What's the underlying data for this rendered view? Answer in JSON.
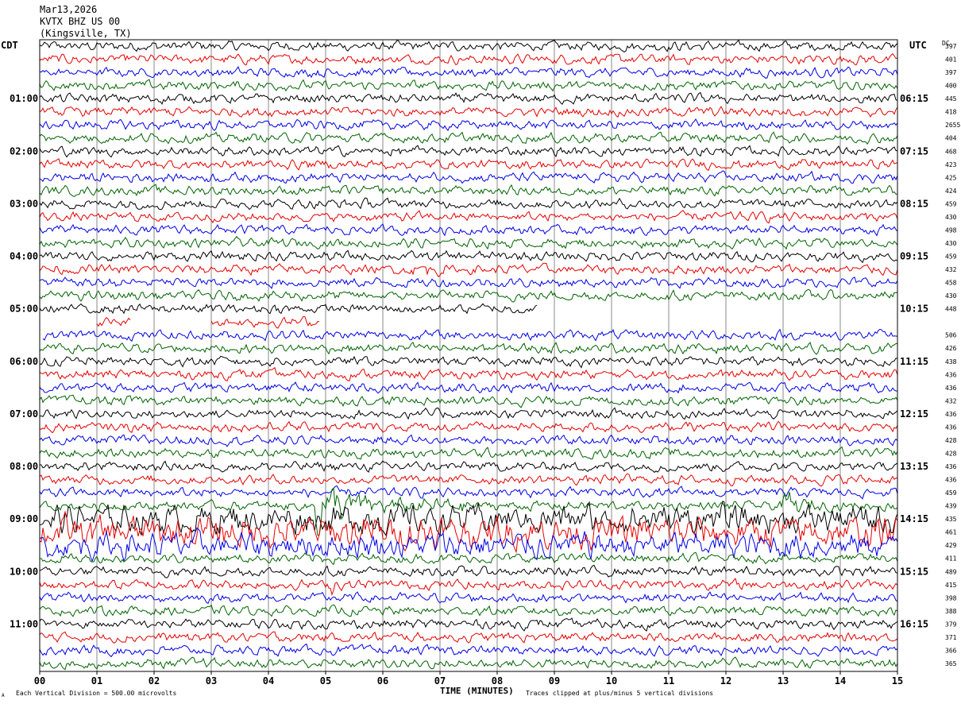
{
  "header": {
    "date": "Mar13,2026",
    "station": "KVTX BHZ US 00",
    "location": "(Kingsville, TX)"
  },
  "left_timezone": "CDT",
  "right_timezone": "UTC",
  "dc_label": "DC",
  "xlabel": "TIME (MINUTES)",
  "footer": {
    "scale_note": "Each Vertical Division =  500.00 microvolts",
    "clip_note": "Traces clipped at plus/minus 5 vertical divisions",
    "corner_mark": "A"
  },
  "colors": {
    "series": [
      "#000000",
      "#e60000",
      "#0000e6",
      "#006400"
    ],
    "grid": "#8a8a8a",
    "frame": "#000000"
  },
  "chart_data": {
    "type": "line",
    "description_units": "helicorder rows of 15 minutes each; x axis in minutes",
    "x_ticks": [
      "00",
      "01",
      "02",
      "03",
      "04",
      "05",
      "06",
      "07",
      "08",
      "09",
      "10",
      "11",
      "12",
      "13",
      "14",
      "15"
    ],
    "xlim": [
      0,
      15
    ],
    "row_count": 48,
    "row_minutes": 15,
    "left_hour_labels": [
      "01:00",
      "02:00",
      "03:00",
      "04:00",
      "05:00",
      "06:00",
      "07:00",
      "08:00",
      "09:00",
      "10:00",
      "11:00"
    ],
    "right_hour_labels": [
      "06:15",
      "07:15",
      "08:15",
      "09:15",
      "10:15",
      "11:15",
      "12:15",
      "13:15",
      "14:15",
      "15:15",
      "16:15"
    ],
    "dc_offsets": [
      "397",
      "401",
      "397",
      "400",
      "445",
      "418",
      "2655",
      "404",
      "468",
      "423",
      "425",
      "424",
      "459",
      "430",
      "498",
      "430",
      "459",
      "432",
      "458",
      "430",
      "448",
      "",
      "506",
      "426",
      "438",
      "436",
      "436",
      "432",
      "436",
      "436",
      "428",
      "428",
      "436",
      "436",
      "459",
      "439",
      "435",
      "461",
      "429",
      "411",
      "489",
      "415",
      "398",
      "388",
      "379",
      "371",
      "366",
      "365"
    ],
    "gaps": [
      {
        "row": 20,
        "start_min": 8.7,
        "end_min": 15
      },
      {
        "row": 21,
        "start_min": 0,
        "end_min": 1.0
      },
      {
        "row": 21,
        "start_min": 1.6,
        "end_min": 3.0
      },
      {
        "row": 21,
        "start_min": 4.9,
        "end_min": 15
      },
      {
        "row": 22,
        "start_min": 0,
        "end_min": 0.05
      }
    ],
    "events": [
      {
        "row": 35,
        "start_min": 4.8,
        "end_min": 7.5,
        "peak_amplitude_div": 3.0
      },
      {
        "row": 35,
        "start_min": 13.0,
        "end_min": 14.8,
        "peak_amplitude_div": 1.6
      },
      {
        "row": 36,
        "start_min": 0,
        "end_min": 15,
        "peak_amplitude_div": 1.4
      },
      {
        "row": 37,
        "start_min": 0,
        "end_min": 15,
        "peak_amplitude_div": 1.5
      },
      {
        "row": 38,
        "start_min": 0,
        "end_min": 15,
        "peak_amplitude_div": 1.2
      },
      {
        "row": 40,
        "start_min": 11.4,
        "end_min": 11.8,
        "peak_amplitude_div": 1.3
      },
      {
        "row": 41,
        "start_min": 5.1,
        "end_min": 5.6,
        "peak_amplitude_div": 1.2
      },
      {
        "row": 17,
        "start_min": 6.5,
        "end_min": 9.5,
        "peak_amplitude_div": 0.9
      }
    ],
    "baseline_amplitude_div": 0.45
  }
}
